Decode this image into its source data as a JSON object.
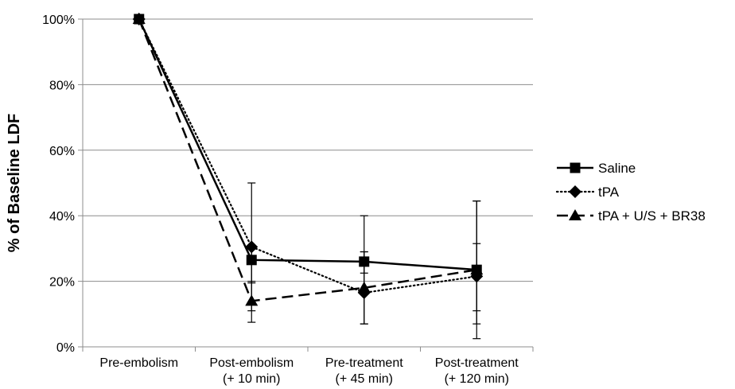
{
  "chart_data": {
    "type": "line",
    "ylabel": "% of Baseline LDF",
    "xlabel": "",
    "title": "",
    "ylim": [
      0,
      100
    ],
    "yticks": [
      "0%",
      "20%",
      "40%",
      "60%",
      "80%",
      "100%"
    ],
    "categories": [
      [
        "Pre-embolism"
      ],
      [
        "Post-embolism",
        "(+ 10 min)"
      ],
      [
        "Pre-treatment",
        "(+ 45 min)"
      ],
      [
        "Post-treatment",
        "(+ 120 min)"
      ]
    ],
    "grid": true,
    "legend_position": "right",
    "series": [
      {
        "name": "Saline",
        "marker": "square",
        "dash": "solid",
        "values": [
          100,
          26.5,
          26,
          23.5
        ],
        "err_low": [
          null,
          19.5,
          22.5,
          11
        ],
        "err_high": [
          null,
          30.5,
          29,
          31.5
        ]
      },
      {
        "name": "tPA",
        "marker": "diamond",
        "dash": "dotted",
        "values": [
          100,
          30.5,
          16.5,
          21.5
        ],
        "err_low": [
          null,
          11,
          7,
          2.5
        ],
        "err_high": [
          null,
          50,
          40,
          44.5
        ]
      },
      {
        "name": "tPA + U/S + BR38",
        "marker": "triangle",
        "dash": "dashed",
        "values": [
          100,
          14,
          18,
          23.5
        ],
        "err_low": [
          null,
          7.5,
          7,
          7
        ],
        "err_high": [
          null,
          20,
          29,
          44.5
        ]
      }
    ]
  }
}
